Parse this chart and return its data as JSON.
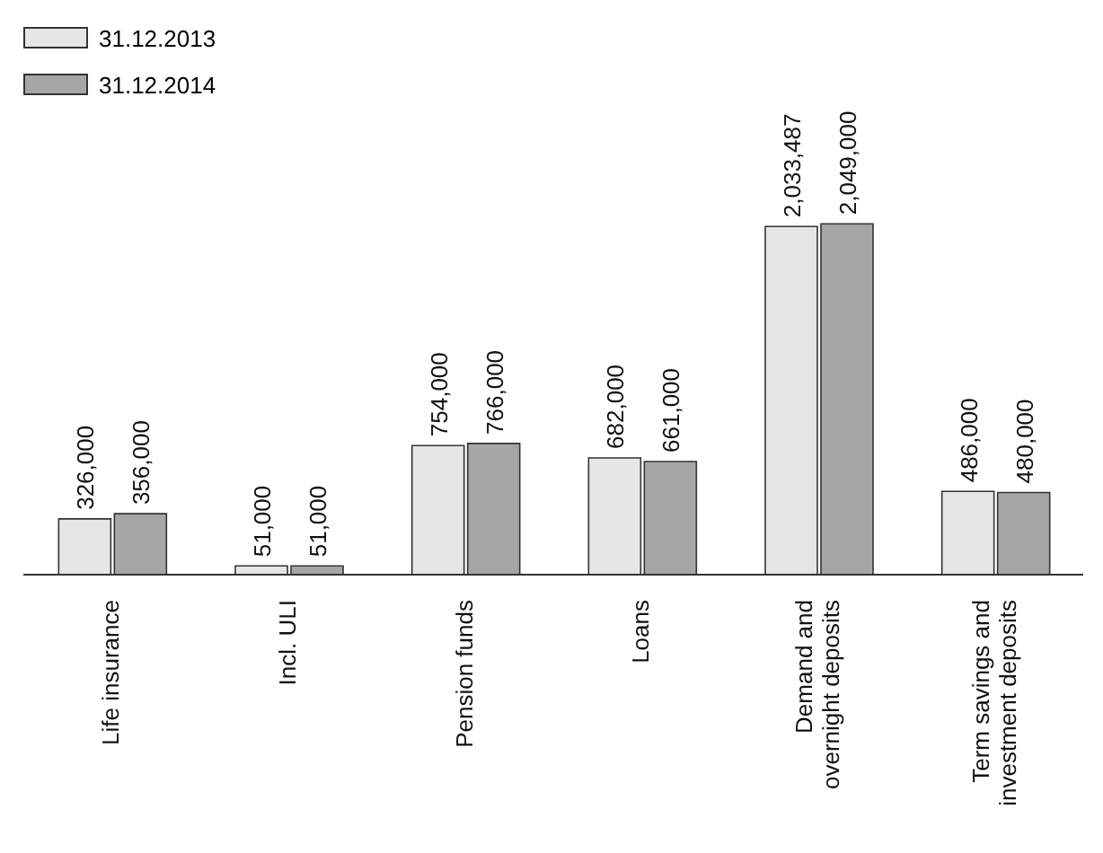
{
  "chart_data": {
    "type": "bar",
    "categories": [
      "Life insurance",
      "Incl. ULI",
      "Pension funds",
      "Loans",
      "Demand and overnight deposits",
      "Term savings and investment deposits"
    ],
    "series": [
      {
        "name": "31.12.2013",
        "color": "#e6e6e6",
        "values": [
          326000,
          51000,
          754000,
          682000,
          2033487,
          486000
        ],
        "value_labels": [
          "326,000",
          "51,000",
          "754,000",
          "682,000",
          "2,033,487",
          "486,000"
        ]
      },
      {
        "name": "31.12.2014",
        "color": "#a6a6a6",
        "values": [
          356000,
          51000,
          766000,
          661000,
          2049000,
          480000
        ],
        "value_labels": [
          "356,000",
          "51,000",
          "766,000",
          "661,000",
          "2,049,000",
          "480,000"
        ]
      }
    ],
    "legend": "top left",
    "grid": false
  }
}
